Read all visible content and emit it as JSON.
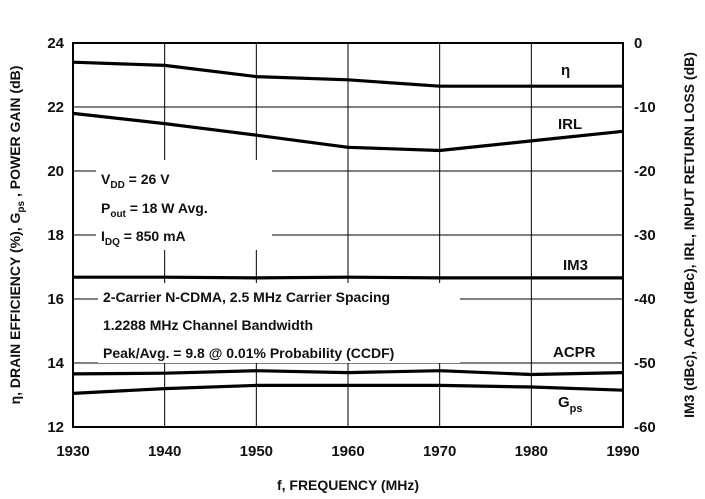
{
  "chart_data": {
    "type": "line",
    "x": [
      1930,
      1940,
      1950,
      1960,
      1970,
      1980,
      1990
    ],
    "xlim": [
      1930,
      1990
    ],
    "ylim_left": [
      12,
      24
    ],
    "ylim_right": [
      -60,
      0
    ],
    "x_ticks": [
      "1930",
      "1940",
      "1950",
      "1960",
      "1970",
      "1980",
      "1990"
    ],
    "y_left_ticks": [
      "12",
      "14",
      "16",
      "18",
      "20",
      "22",
      "24"
    ],
    "y_right_ticks": [
      "-60",
      "-50",
      "-40",
      "-30",
      "-20",
      "-10",
      "0"
    ],
    "xlabel": "f, FREQUENCY (MHz)",
    "ylabel_left": "η, DRAIN EFFICIENCY (%), G ps , POWER GAIN (dB)",
    "ylabel_right": "IM3 (dBc), ACPR (dBc), IRL, INPUT RETURN LOSS (dB)",
    "grid": true,
    "series": [
      {
        "name": "η",
        "axis": "left",
        "x": [
          1930,
          1940,
          1950,
          1960,
          1970,
          1980,
          1990
        ],
        "values": [
          23.4,
          23.3,
          22.95,
          22.85,
          22.65,
          22.65,
          22.65
        ]
      },
      {
        "name": "IRL",
        "axis": "right",
        "x": [
          1930,
          1940,
          1950,
          1960,
          1970,
          1980,
          1990
        ],
        "values": [
          -11.0,
          -12.6,
          -14.4,
          -16.3,
          -16.8,
          -15.3,
          -13.8
        ]
      },
      {
        "name": "IM3",
        "axis": "right",
        "x": [
          1930,
          1940,
          1950,
          1960,
          1970,
          1980,
          1990
        ],
        "values": [
          -36.6,
          -36.6,
          -36.7,
          -36.6,
          -36.7,
          -36.7,
          -36.7
        ]
      },
      {
        "name": "ACPR",
        "axis": "right",
        "x": [
          1930,
          1940,
          1950,
          1960,
          1970,
          1980,
          1990
        ],
        "values": [
          -51.7,
          -51.6,
          -51.2,
          -51.5,
          -51.2,
          -51.8,
          -51.5
        ]
      },
      {
        "name": "G ps",
        "axis": "left",
        "x": [
          1930,
          1940,
          1950,
          1960,
          1970,
          1980,
          1990
        ],
        "values": [
          13.05,
          13.2,
          13.3,
          13.3,
          13.3,
          13.25,
          13.15
        ]
      }
    ],
    "annotation_box_1": {
      "vdd": "V DD = 26 V",
      "pout": "P out = 18 W Avg.",
      "idq": "I DQ = 850 mA"
    },
    "annotation_box_2": {
      "line1": "2-Carrier N-CDMA, 2.5 MHz Carrier Spacing",
      "line2": "1.2288 MHz Channel Bandwidth",
      "line3": "Peak/Avg. = 9.8 @ 0.01% Probability (CCDF)"
    }
  }
}
